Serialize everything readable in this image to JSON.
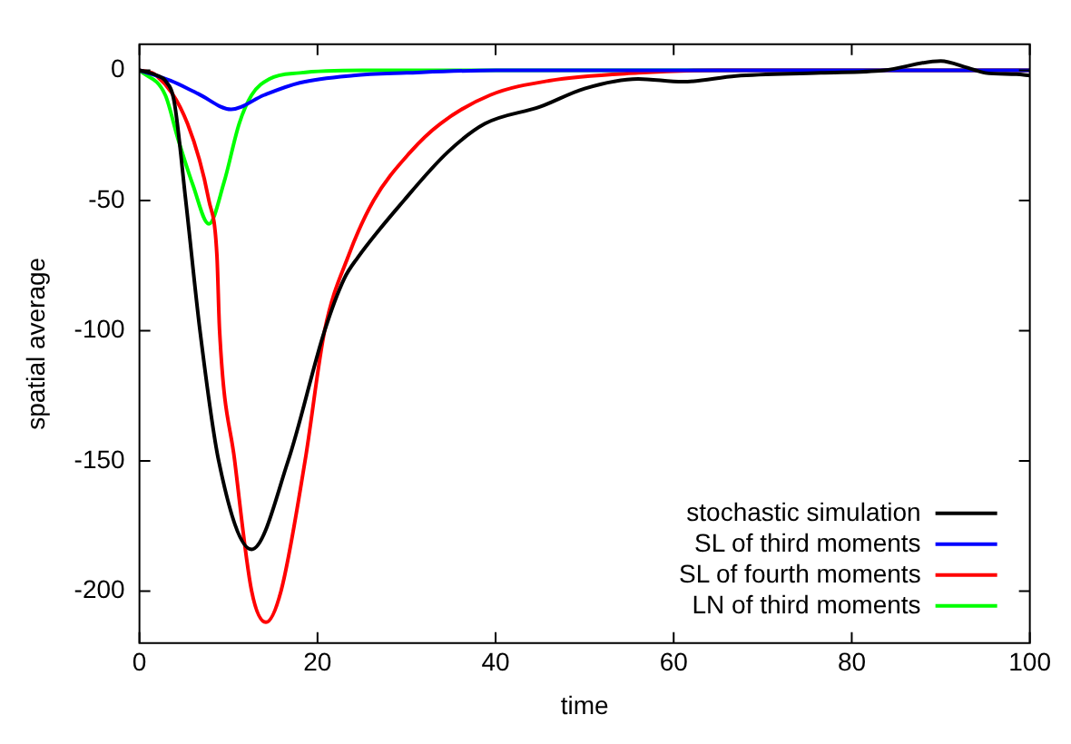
{
  "chart_data": {
    "type": "line",
    "xlabel": "time",
    "ylabel": "spatial average",
    "xlim": [
      0,
      100
    ],
    "xticks": [
      0,
      20,
      40,
      60,
      80,
      100
    ],
    "ylim": [
      -220,
      10
    ],
    "yticks": [
      0,
      -50,
      -100,
      -150,
      -200
    ],
    "grid": false,
    "legend": "bottom right",
    "marker": "none",
    "line_style": "solid",
    "series": [
      {
        "name": "stochastic simulation",
        "color": "#000000",
        "x": [
          0,
          2,
          2.9,
          3.9,
          5.2,
          6.8,
          8.9,
          12.6,
          16.7,
          20.8,
          23,
          24.5,
          29.7,
          34.6,
          38.8,
          45,
          50,
          56,
          61,
          67,
          76.5,
          83.6,
          90,
          93,
          95,
          98.5,
          100
        ],
        "values": [
          0,
          -2,
          -4,
          -12,
          -50,
          -100,
          -150,
          -184,
          -150,
          -100,
          -80,
          -72,
          -50,
          -31.5,
          -20.5,
          -14,
          -7,
          -3.3,
          -4.4,
          -2.2,
          -1,
          0,
          3.6,
          1,
          -1,
          -1.5,
          -2
        ]
      },
      {
        "name": "SL of third moments",
        "color": "#0000ff",
        "x": [
          0,
          3.5,
          6.6,
          10.3,
          14,
          18,
          24,
          30,
          40,
          100
        ],
        "values": [
          0,
          -4,
          -9,
          -15,
          -9.5,
          -4.8,
          -2,
          -1,
          0,
          0
        ]
      },
      {
        "name": "SL of fourth moments",
        "color": "#ff0000",
        "x": [
          0,
          1.9,
          5.4,
          7.8,
          8.7,
          9.0,
          10.7,
          12.6,
          14.2,
          15.9,
          18.6,
          20.8,
          23.5,
          26.3,
          30.4,
          33.8,
          39.4,
          46,
          56,
          65,
          100
        ],
        "values": [
          0,
          -2,
          -20.5,
          -50,
          -71,
          -100,
          -150,
          -200,
          -212,
          -200,
          -150,
          -100,
          -71,
          -50,
          -31.5,
          -20.5,
          -9.5,
          -4,
          -1,
          0,
          0
        ]
      },
      {
        "name": "LN of third moments",
        "color": "#00ff00",
        "x": [
          0,
          2.9,
          4.3,
          6.0,
          7.8,
          9.5,
          11.2,
          12.6,
          14.6,
          18,
          25,
          100
        ],
        "values": [
          0,
          -9.5,
          -26,
          -44,
          -59,
          -43,
          -20.5,
          -9.5,
          -3.3,
          -1,
          0,
          0
        ]
      }
    ]
  }
}
